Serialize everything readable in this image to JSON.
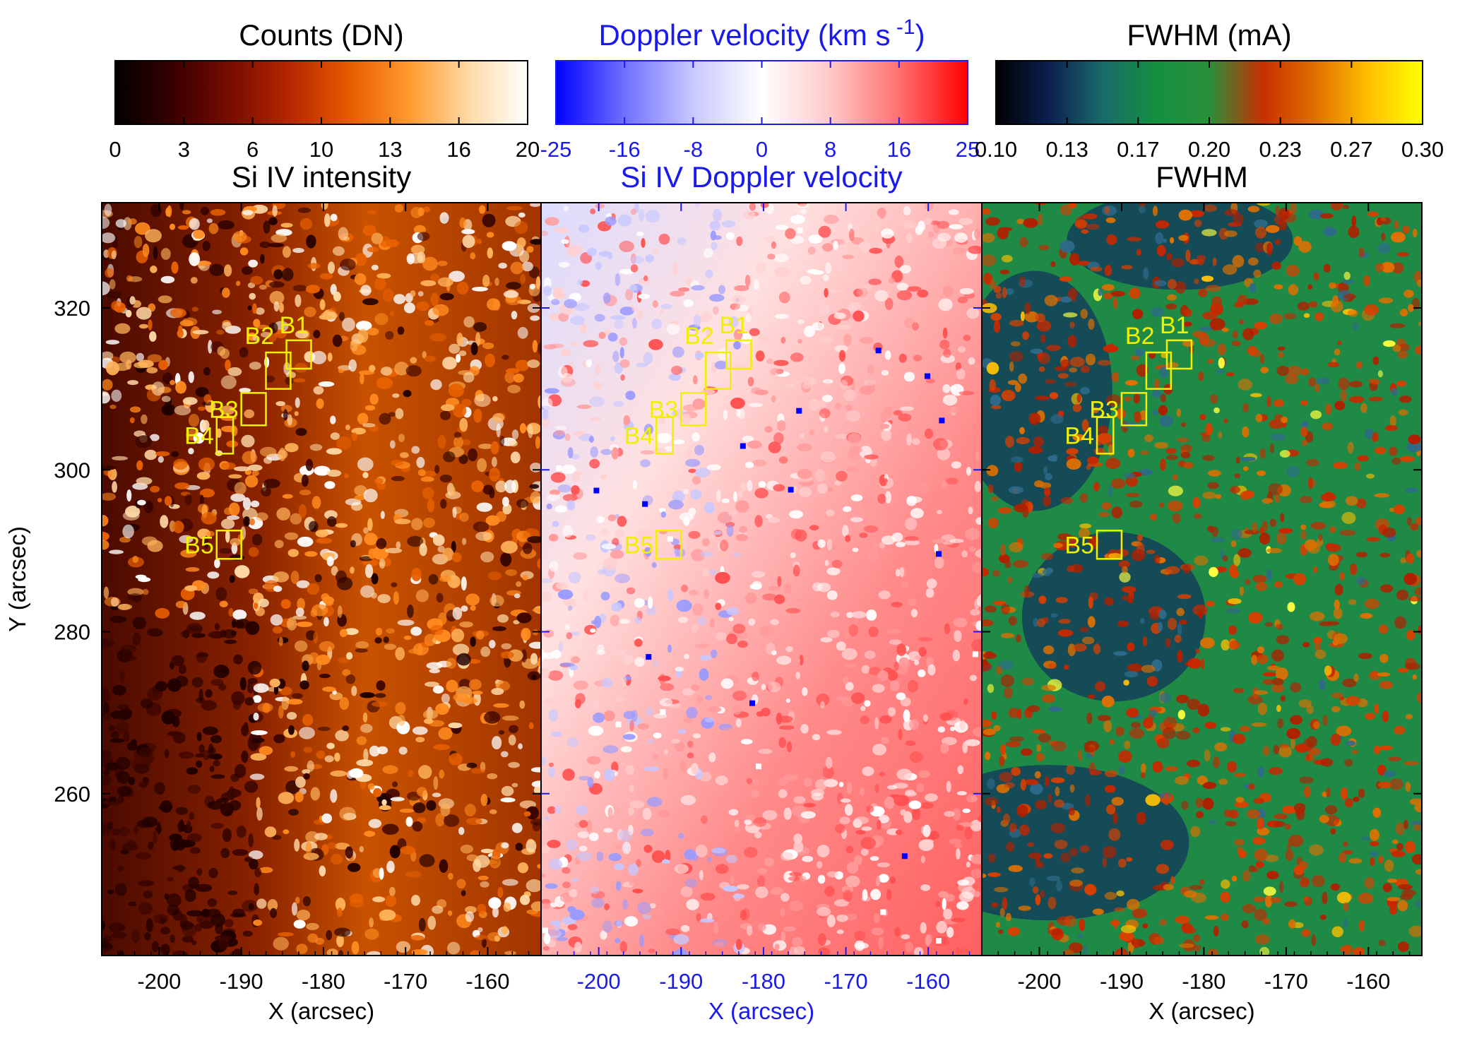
{
  "colors": {
    "axis_black": "#000000",
    "axis_blue": "#1a1aee",
    "box_yellow": "#f0f000"
  },
  "colorbars": [
    {
      "title": "Counts (DN)",
      "title_color": "#000000",
      "ticks": [
        "0",
        "3",
        "6",
        "10",
        "13",
        "16",
        "20"
      ],
      "stops": [
        "#000000",
        "#3a0000",
        "#7a0d00",
        "#b82800",
        "#e85c00",
        "#ff9a2e",
        "#ffd9a6",
        "#ffffff"
      ]
    },
    {
      "title": "Doppler velocity (km s",
      "title_sup": "-1",
      "title_close": ")",
      "title_color": "#1a1aee",
      "ticks": [
        "-25",
        "-16",
        "-8",
        "0",
        "8",
        "16",
        "25"
      ],
      "stops": [
        "#0000ff",
        "#7070ff",
        "#c8c8ff",
        "#ffffff",
        "#ffc8c8",
        "#ff7070",
        "#ff0000"
      ]
    },
    {
      "title": "FWHM (mA)",
      "title_color": "#000000",
      "ticks": [
        "0.10",
        "0.13",
        "0.17",
        "0.20",
        "0.23",
        "0.27",
        "0.30"
      ],
      "stops": [
        "#000000",
        "#0a2050",
        "#1a6a6a",
        "#129040",
        "#2a8f3a",
        "#c83000",
        "#e07000",
        "#ffc000",
        "#ffff00"
      ]
    }
  ],
  "chart_data": [
    {
      "type": "heatmap",
      "title": "Si IV intensity",
      "xlabel": "X (arcsec)",
      "ylabel": "Y (arcsec)",
      "xlim": [
        -207,
        -153.5
      ],
      "ylim": [
        240,
        333
      ],
      "x_ticks": [
        "-200",
        "-190",
        "-180",
        "-170",
        "-160"
      ],
      "y_ticks": [
        "260",
        "280",
        "300",
        "320"
      ],
      "colorbar_range": [
        0,
        20
      ],
      "axis_color": "#000000"
    },
    {
      "type": "heatmap",
      "title": "Si IV Doppler velocity",
      "xlabel": "X (arcsec)",
      "ylabel": "",
      "xlim": [
        -207,
        -153.5
      ],
      "ylim": [
        240,
        333
      ],
      "x_ticks": [
        "-200",
        "-190",
        "-180",
        "-170",
        "-160"
      ],
      "y_ticks": [],
      "colorbar_range": [
        -25,
        25
      ],
      "axis_color": "#1a1aee"
    },
    {
      "type": "heatmap",
      "title": "FWHM",
      "xlabel": "X (arcsec)",
      "ylabel": "",
      "xlim": [
        -207,
        -153.5
      ],
      "ylim": [
        240,
        333
      ],
      "x_ticks": [
        "-200",
        "-190",
        "-180",
        "-170",
        "-160"
      ],
      "y_ticks": [],
      "colorbar_range": [
        0.1,
        0.3
      ],
      "axis_color": "#000000"
    }
  ],
  "boxes": [
    {
      "label": "B1",
      "x": [
        -184.5,
        -181.5
      ],
      "y": [
        312.5,
        316.0
      ]
    },
    {
      "label": "B2",
      "x": [
        -187.0,
        -184.0
      ],
      "y": [
        310.0,
        314.5
      ]
    },
    {
      "label": "B3",
      "x": [
        -190.0,
        -187.0
      ],
      "y": [
        305.5,
        309.5
      ]
    },
    {
      "label": "B4",
      "x": [
        -193.0,
        -191.0
      ],
      "y": [
        302.0,
        306.5
      ]
    },
    {
      "label": "B5",
      "x": [
        -193.0,
        -190.0
      ],
      "y": [
        289.0,
        292.5
      ]
    }
  ]
}
